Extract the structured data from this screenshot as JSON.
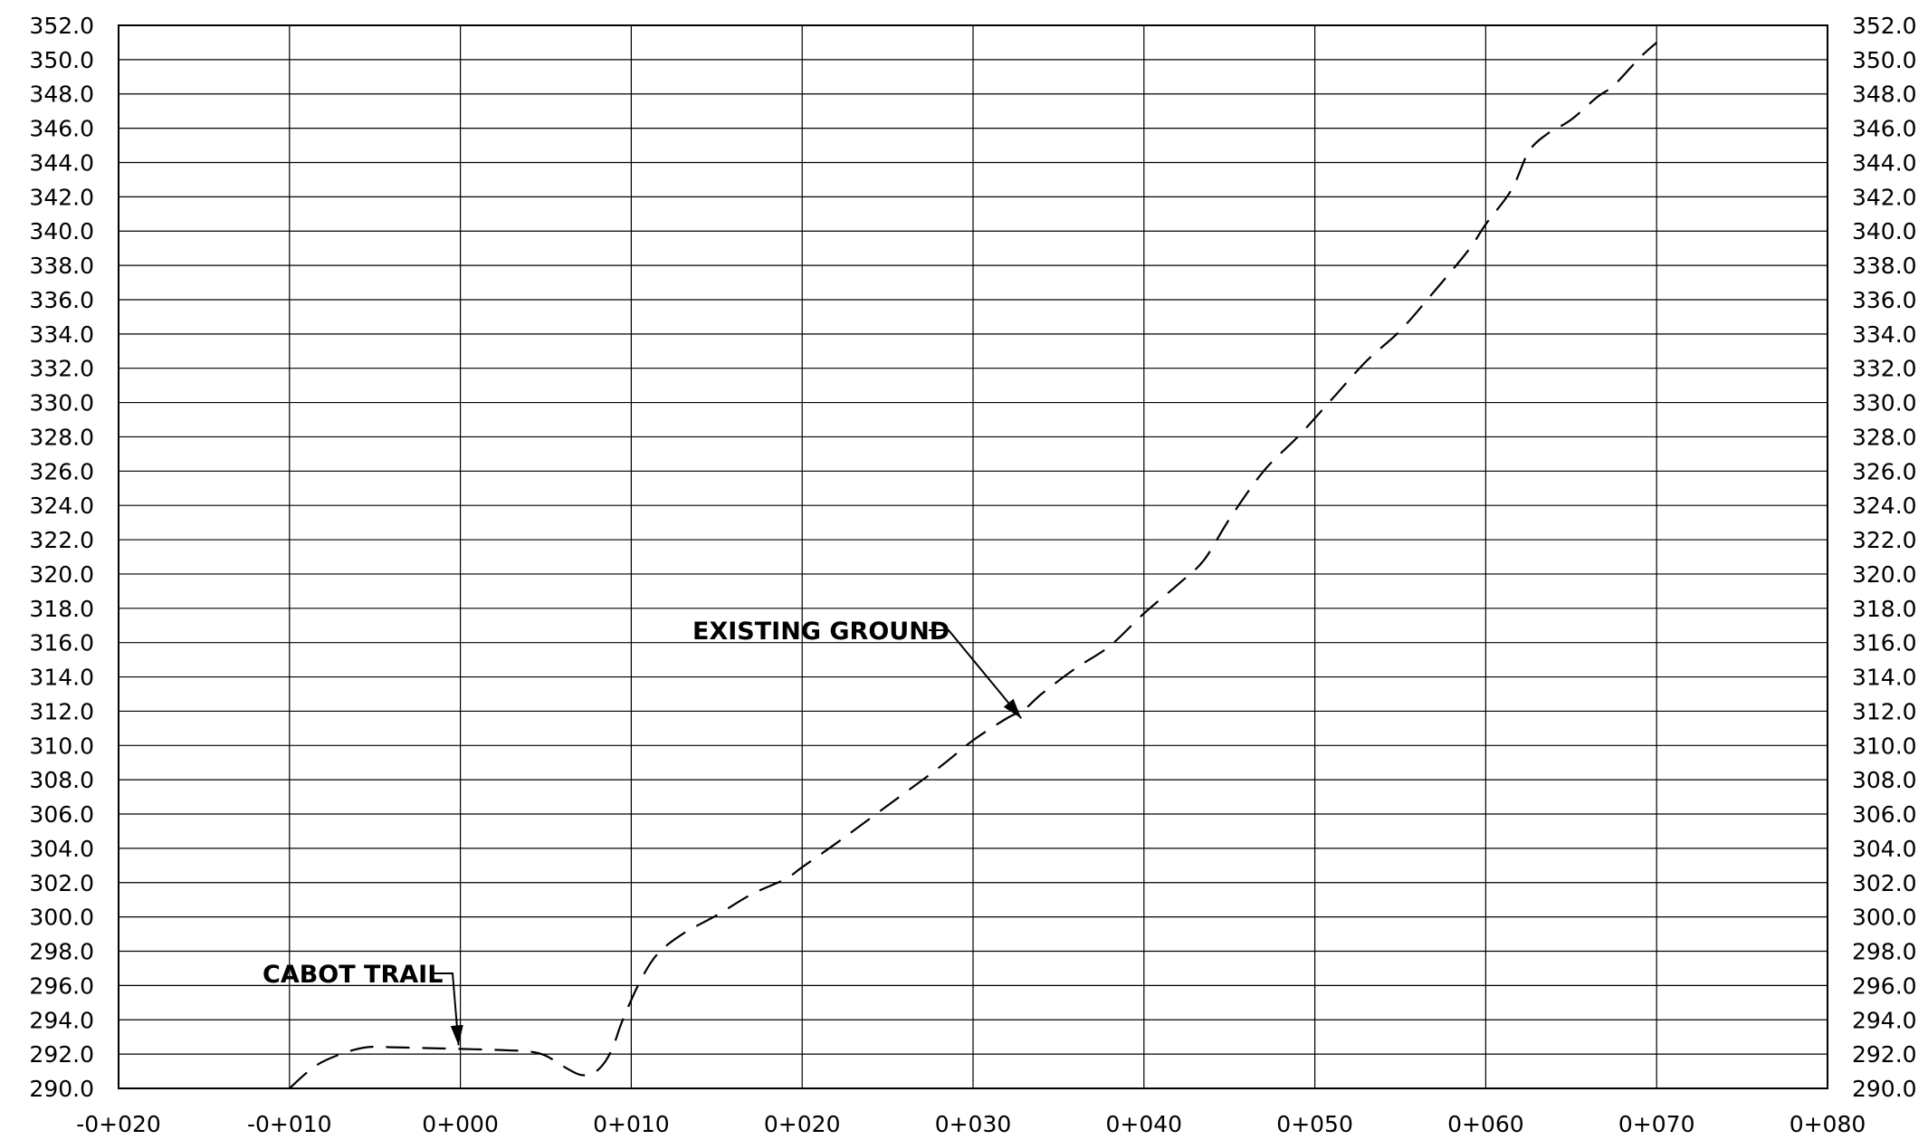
{
  "colors": {
    "background": "#ffffff",
    "grid": "#000000",
    "line": "#000000"
  },
  "chart_data": {
    "type": "line",
    "title": "",
    "xlabel": "",
    "ylabel": "",
    "xlim": [
      -20,
      80
    ],
    "ylim": [
      290,
      352
    ],
    "x_tick_values": [
      -20,
      -10,
      0,
      10,
      20,
      30,
      40,
      50,
      60,
      70,
      80
    ],
    "x_tick_labels": [
      "-0+020",
      "-0+010",
      "0+000",
      "0+010",
      "0+020",
      "0+030",
      "0+040",
      "0+050",
      "0+060",
      "0+070",
      "0+080"
    ],
    "y_tick_step": 2,
    "y_tick_labels": [
      "290.0",
      "292.0",
      "294.0",
      "296.0",
      "298.0",
      "300.0",
      "302.0",
      "304.0",
      "306.0",
      "308.0",
      "310.0",
      "312.0",
      "314.0",
      "316.0",
      "318.0",
      "320.0",
      "322.0",
      "324.0",
      "326.0",
      "328.0",
      "330.0",
      "332.0",
      "334.0",
      "336.0",
      "338.0",
      "340.0",
      "342.0",
      "344.0",
      "346.0",
      "348.0",
      "350.0",
      "352.0"
    ],
    "grid": true,
    "y_labels_both_sides": true,
    "series": [
      {
        "style": "dashed",
        "x": [
          -10,
          -8.5,
          -7,
          -5.5,
          -4,
          -2,
          0,
          2,
          4,
          5,
          6,
          7,
          7.8,
          8.5,
          9,
          9.5,
          10.5,
          11.5,
          13,
          15,
          17,
          19,
          20,
          22,
          25,
          28,
          30,
          32,
          33,
          34,
          36,
          38,
          40,
          42,
          43.5,
          45,
          47,
          49,
          51,
          53,
          55,
          57,
          59,
          60,
          61.5,
          62.5,
          63.5,
          65,
          66.5,
          67.5,
          69,
          70
        ],
        "y": [
          290.0,
          291.3,
          292.0,
          292.4,
          292.4,
          292.35,
          292.3,
          292.25,
          292.15,
          291.9,
          291.3,
          290.8,
          290.9,
          291.6,
          292.6,
          294.0,
          296.2,
          297.8,
          299.0,
          300.1,
          301.3,
          302.2,
          302.9,
          304.3,
          306.5,
          308.7,
          310.3,
          311.6,
          312.1,
          313.0,
          314.5,
          315.8,
          317.7,
          319.4,
          320.8,
          323.2,
          326.0,
          328.0,
          330.2,
          332.4,
          334.2,
          336.5,
          338.9,
          340.4,
          342.4,
          344.6,
          345.6,
          346.5,
          347.8,
          348.5,
          350.1,
          351.0
        ]
      }
    ],
    "annotations": [
      {
        "text": "CABOT TRAIL",
        "target_x": 0,
        "target_y": 292.3
      },
      {
        "text": "EXISTING GROUND",
        "target_x": 32.5,
        "target_y": 311.8
      }
    ]
  }
}
